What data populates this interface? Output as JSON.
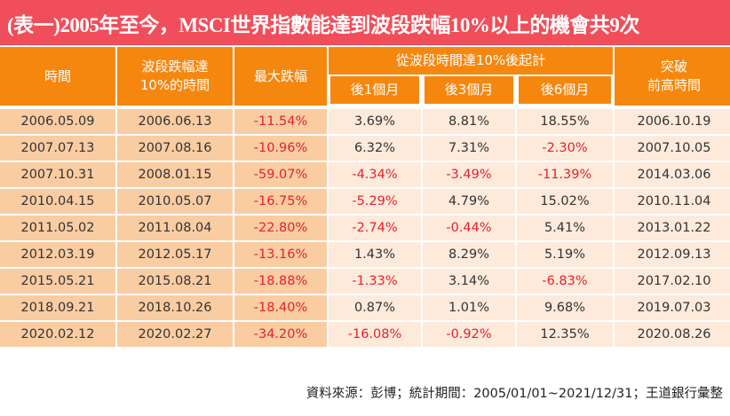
{
  "title": "(表一)2005年至今，MSCI世界指數能達到波段跌幅10%以上的機會共9次",
  "headers": {
    "time": "時間",
    "reach": "波段跌幅達\n10%的時間",
    "max_drop": "最大跌幅",
    "group": "從波段時間達10%後起計",
    "m1": "後1個月",
    "m3": "後3個月",
    "m6": "後6個月",
    "breakout": "突破\n前高時間"
  },
  "rows": [
    [
      "2006.05.09",
      "2006.06.13",
      "-11.54%",
      "3.69%",
      "8.81%",
      "18.55%",
      "2006.10.19"
    ],
    [
      "2007.07.13",
      "2007.08.16",
      "-10.96%",
      "6.32%",
      "7.31%",
      "-2.30%",
      "2007.10.05"
    ],
    [
      "2007.10.31",
      "2008.01.15",
      "-59.07%",
      "-4.34%",
      "-3.49%",
      "-11.39%",
      "2014.03.06"
    ],
    [
      "2010.04.15",
      "2010.05.07",
      "-16.75%",
      "-5.29%",
      "4.79%",
      "15.02%",
      "2010.11.04"
    ],
    [
      "2011.05.02",
      "2011.08.04",
      "-22.80%",
      "-2.74%",
      "-0.44%",
      "5.41%",
      "2013.01.22"
    ],
    [
      "2012.03.19",
      "2012.05.17",
      "-13.16%",
      "1.43%",
      "8.29%",
      "5.19%",
      "2012.09.13"
    ],
    [
      "2015.05.21",
      "2015.08.21",
      "-18.88%",
      "-1.33%",
      "3.14%",
      "-6.83%",
      "2017.02.10"
    ],
    [
      "2018.09.21",
      "2018.10.26",
      "-18.40%",
      "0.87%",
      "1.01%",
      "9.68%",
      "2019.07.03"
    ],
    [
      "2020.02.12",
      "2020.02.27",
      "-34.20%",
      "-16.08%",
      "-0.92%",
      "12.35%",
      "2020.08.26"
    ]
  ],
  "footer": "資料來源：彭博；統計期間：2005/01/01~2021/12/31；王道銀行彙整",
  "colors": {
    "title_bg": "#F04E5A",
    "header_bg": "#F5870F",
    "col_a": "#F9CCA2",
    "col_b": "#FDEADB",
    "negative": "#E8202A"
  }
}
